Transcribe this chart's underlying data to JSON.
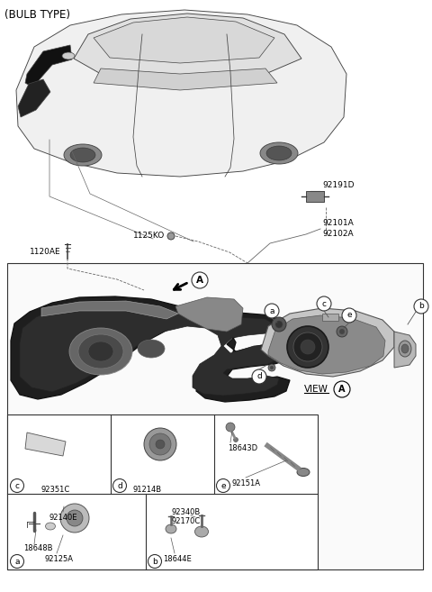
{
  "bg_color": "#ffffff",
  "fig_width": 4.8,
  "fig_height": 6.57,
  "dpi": 100,
  "header": "(BULB TYPE)",
  "callout_92191D": "92191D",
  "callout_1125KO": "1125KO",
  "callout_92101A": "92101A",
  "callout_92102A": "92102A",
  "callout_1120AE": "1120AE",
  "view_text": "VIEW",
  "view_circle": "A",
  "arrow_circle": "A",
  "section_letters": [
    "a",
    "b",
    "c",
    "d",
    "e"
  ],
  "sec_a_parts": [
    "92125A",
    "18648B",
    "92140E"
  ],
  "sec_b_parts": [
    "18644E",
    "92170C",
    "92340B"
  ],
  "sec_c_parts": [
    "92351C"
  ],
  "sec_d_parts": [
    "91214B"
  ],
  "sec_e_parts": [
    "92151A",
    "18643D"
  ]
}
